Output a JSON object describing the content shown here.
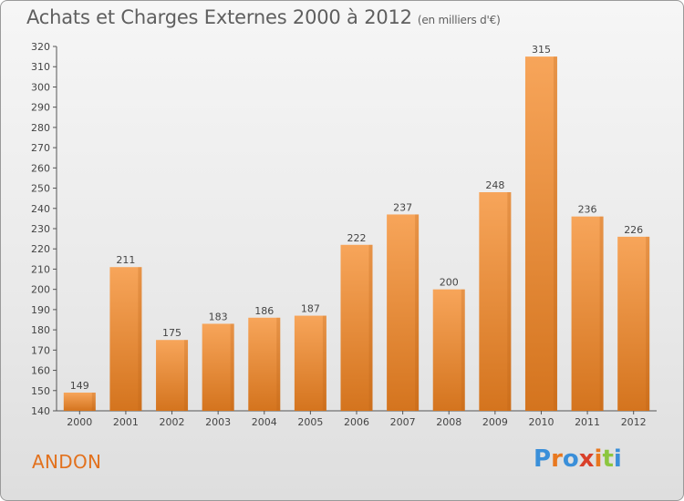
{
  "header": {
    "title": "Achats et Charges Externes 2000 à 2012",
    "subtitle": "(en milliers d'€)"
  },
  "footer": {
    "commune": "ANDON",
    "brand": "Proxiti"
  },
  "colors": {
    "bar_light": "#f7a55a",
    "bar_dark": "#d4741e",
    "commune_text": "#e2711d",
    "axis": "#555555"
  },
  "chart_data": {
    "type": "bar",
    "categories": [
      "2000",
      "2001",
      "2002",
      "2003",
      "2004",
      "2005",
      "2006",
      "2007",
      "2008",
      "2009",
      "2010",
      "2011",
      "2012"
    ],
    "values": [
      149,
      211,
      175,
      183,
      186,
      187,
      222,
      237,
      200,
      248,
      315,
      236,
      226
    ],
    "ylim": [
      140,
      320
    ],
    "ytick_step": 10,
    "grid": false,
    "data_labels": true
  }
}
